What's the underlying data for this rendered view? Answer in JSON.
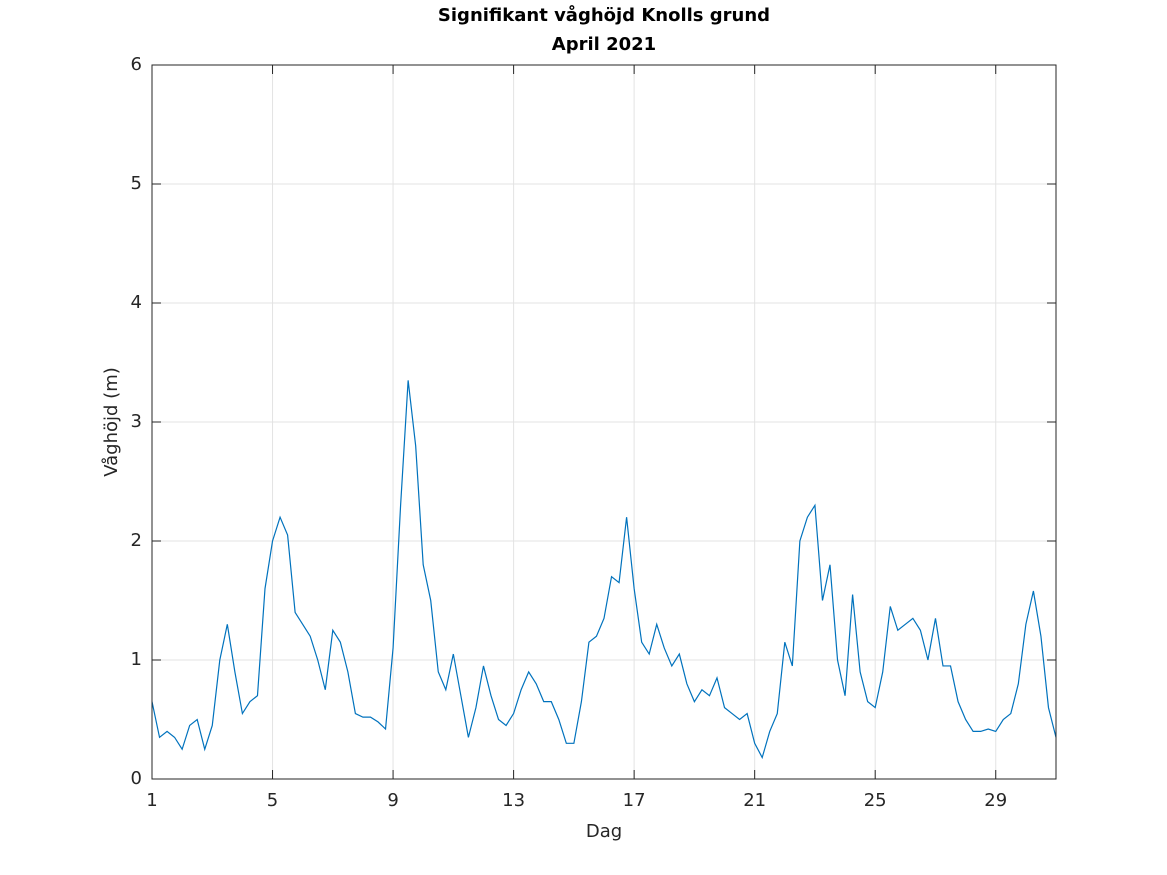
{
  "chart_data": {
    "type": "line",
    "title": "Signifikant våghöjd Knolls grund",
    "subtitle": "April 2021",
    "x_label": "Dag",
    "y_label": "Våghöjd (m)",
    "x": [
      1,
      1.25,
      1.5,
      1.75,
      2,
      2.25,
      2.5,
      2.75,
      3,
      3.25,
      3.5,
      3.75,
      4,
      4.25,
      4.5,
      4.75,
      5,
      5.25,
      5.5,
      5.75,
      6,
      6.25,
      6.5,
      6.75,
      7,
      7.25,
      7.5,
      7.75,
      8,
      8.25,
      8.5,
      8.75,
      9,
      9.25,
      9.5,
      9.75,
      10,
      10.25,
      10.5,
      10.75,
      11,
      11.25,
      11.5,
      11.75,
      12,
      12.25,
      12.5,
      12.75,
      13,
      13.25,
      13.5,
      13.75,
      14,
      14.25,
      14.5,
      14.75,
      15,
      15.25,
      15.5,
      15.75,
      16,
      16.25,
      16.5,
      16.75,
      17,
      17.25,
      17.5,
      17.75,
      18,
      18.25,
      18.5,
      18.75,
      19,
      19.25,
      19.5,
      19.75,
      20,
      20.25,
      20.5,
      20.75,
      21,
      21.25,
      21.5,
      21.75,
      22,
      22.25,
      22.5,
      22.75,
      23,
      23.25,
      23.5,
      23.75,
      24,
      24.25,
      24.5,
      24.75,
      25,
      25.25,
      25.5,
      25.75,
      26,
      26.25,
      26.5,
      26.75,
      27,
      27.25,
      27.5,
      27.75,
      28,
      28.25,
      28.5,
      28.75,
      29,
      29.25,
      29.5,
      29.75,
      30,
      30.25,
      30.5,
      30.75,
      31
    ],
    "series": [
      {
        "name": "Våghöjd",
        "color": "#0072bd",
        "values": [
          0.65,
          0.35,
          0.4,
          0.35,
          0.25,
          0.45,
          0.5,
          0.25,
          0.45,
          1.0,
          1.3,
          0.9,
          0.55,
          0.65,
          0.7,
          1.6,
          2.0,
          2.2,
          2.05,
          1.4,
          1.3,
          1.2,
          1.0,
          0.75,
          1.25,
          1.15,
          0.9,
          0.55,
          0.52,
          0.52,
          0.48,
          0.42,
          1.1,
          2.3,
          3.35,
          2.8,
          1.8,
          1.5,
          0.9,
          0.75,
          1.05,
          0.7,
          0.35,
          0.6,
          0.95,
          0.7,
          0.5,
          0.45,
          0.55,
          0.75,
          0.9,
          0.8,
          0.65,
          0.65,
          0.5,
          0.3,
          0.3,
          0.65,
          1.15,
          1.2,
          1.35,
          1.7,
          1.65,
          2.2,
          1.6,
          1.15,
          1.05,
          1.3,
          1.1,
          0.95,
          1.05,
          0.8,
          0.65,
          0.75,
          0.7,
          0.85,
          0.6,
          0.55,
          0.5,
          0.55,
          0.3,
          0.18,
          0.4,
          0.55,
          1.15,
          0.95,
          2.0,
          2.2,
          2.3,
          1.5,
          1.8,
          1.0,
          0.7,
          1.55,
          0.9,
          0.65,
          0.6,
          0.9,
          1.45,
          1.25,
          1.3,
          1.35,
          1.25,
          1.0,
          1.35,
          0.95,
          0.95,
          0.65,
          0.5,
          0.4,
          0.4,
          0.42,
          0.4,
          0.5,
          0.55,
          0.8,
          1.3,
          1.58,
          1.2,
          0.6,
          0.35
        ]
      }
    ],
    "xlim": [
      1,
      31
    ],
    "xticks": [
      1,
      5,
      9,
      13,
      17,
      21,
      25,
      29
    ],
    "ylim": [
      0,
      6
    ],
    "yticks": [
      0,
      1,
      2,
      3,
      4,
      5,
      6
    ],
    "grid": true
  }
}
